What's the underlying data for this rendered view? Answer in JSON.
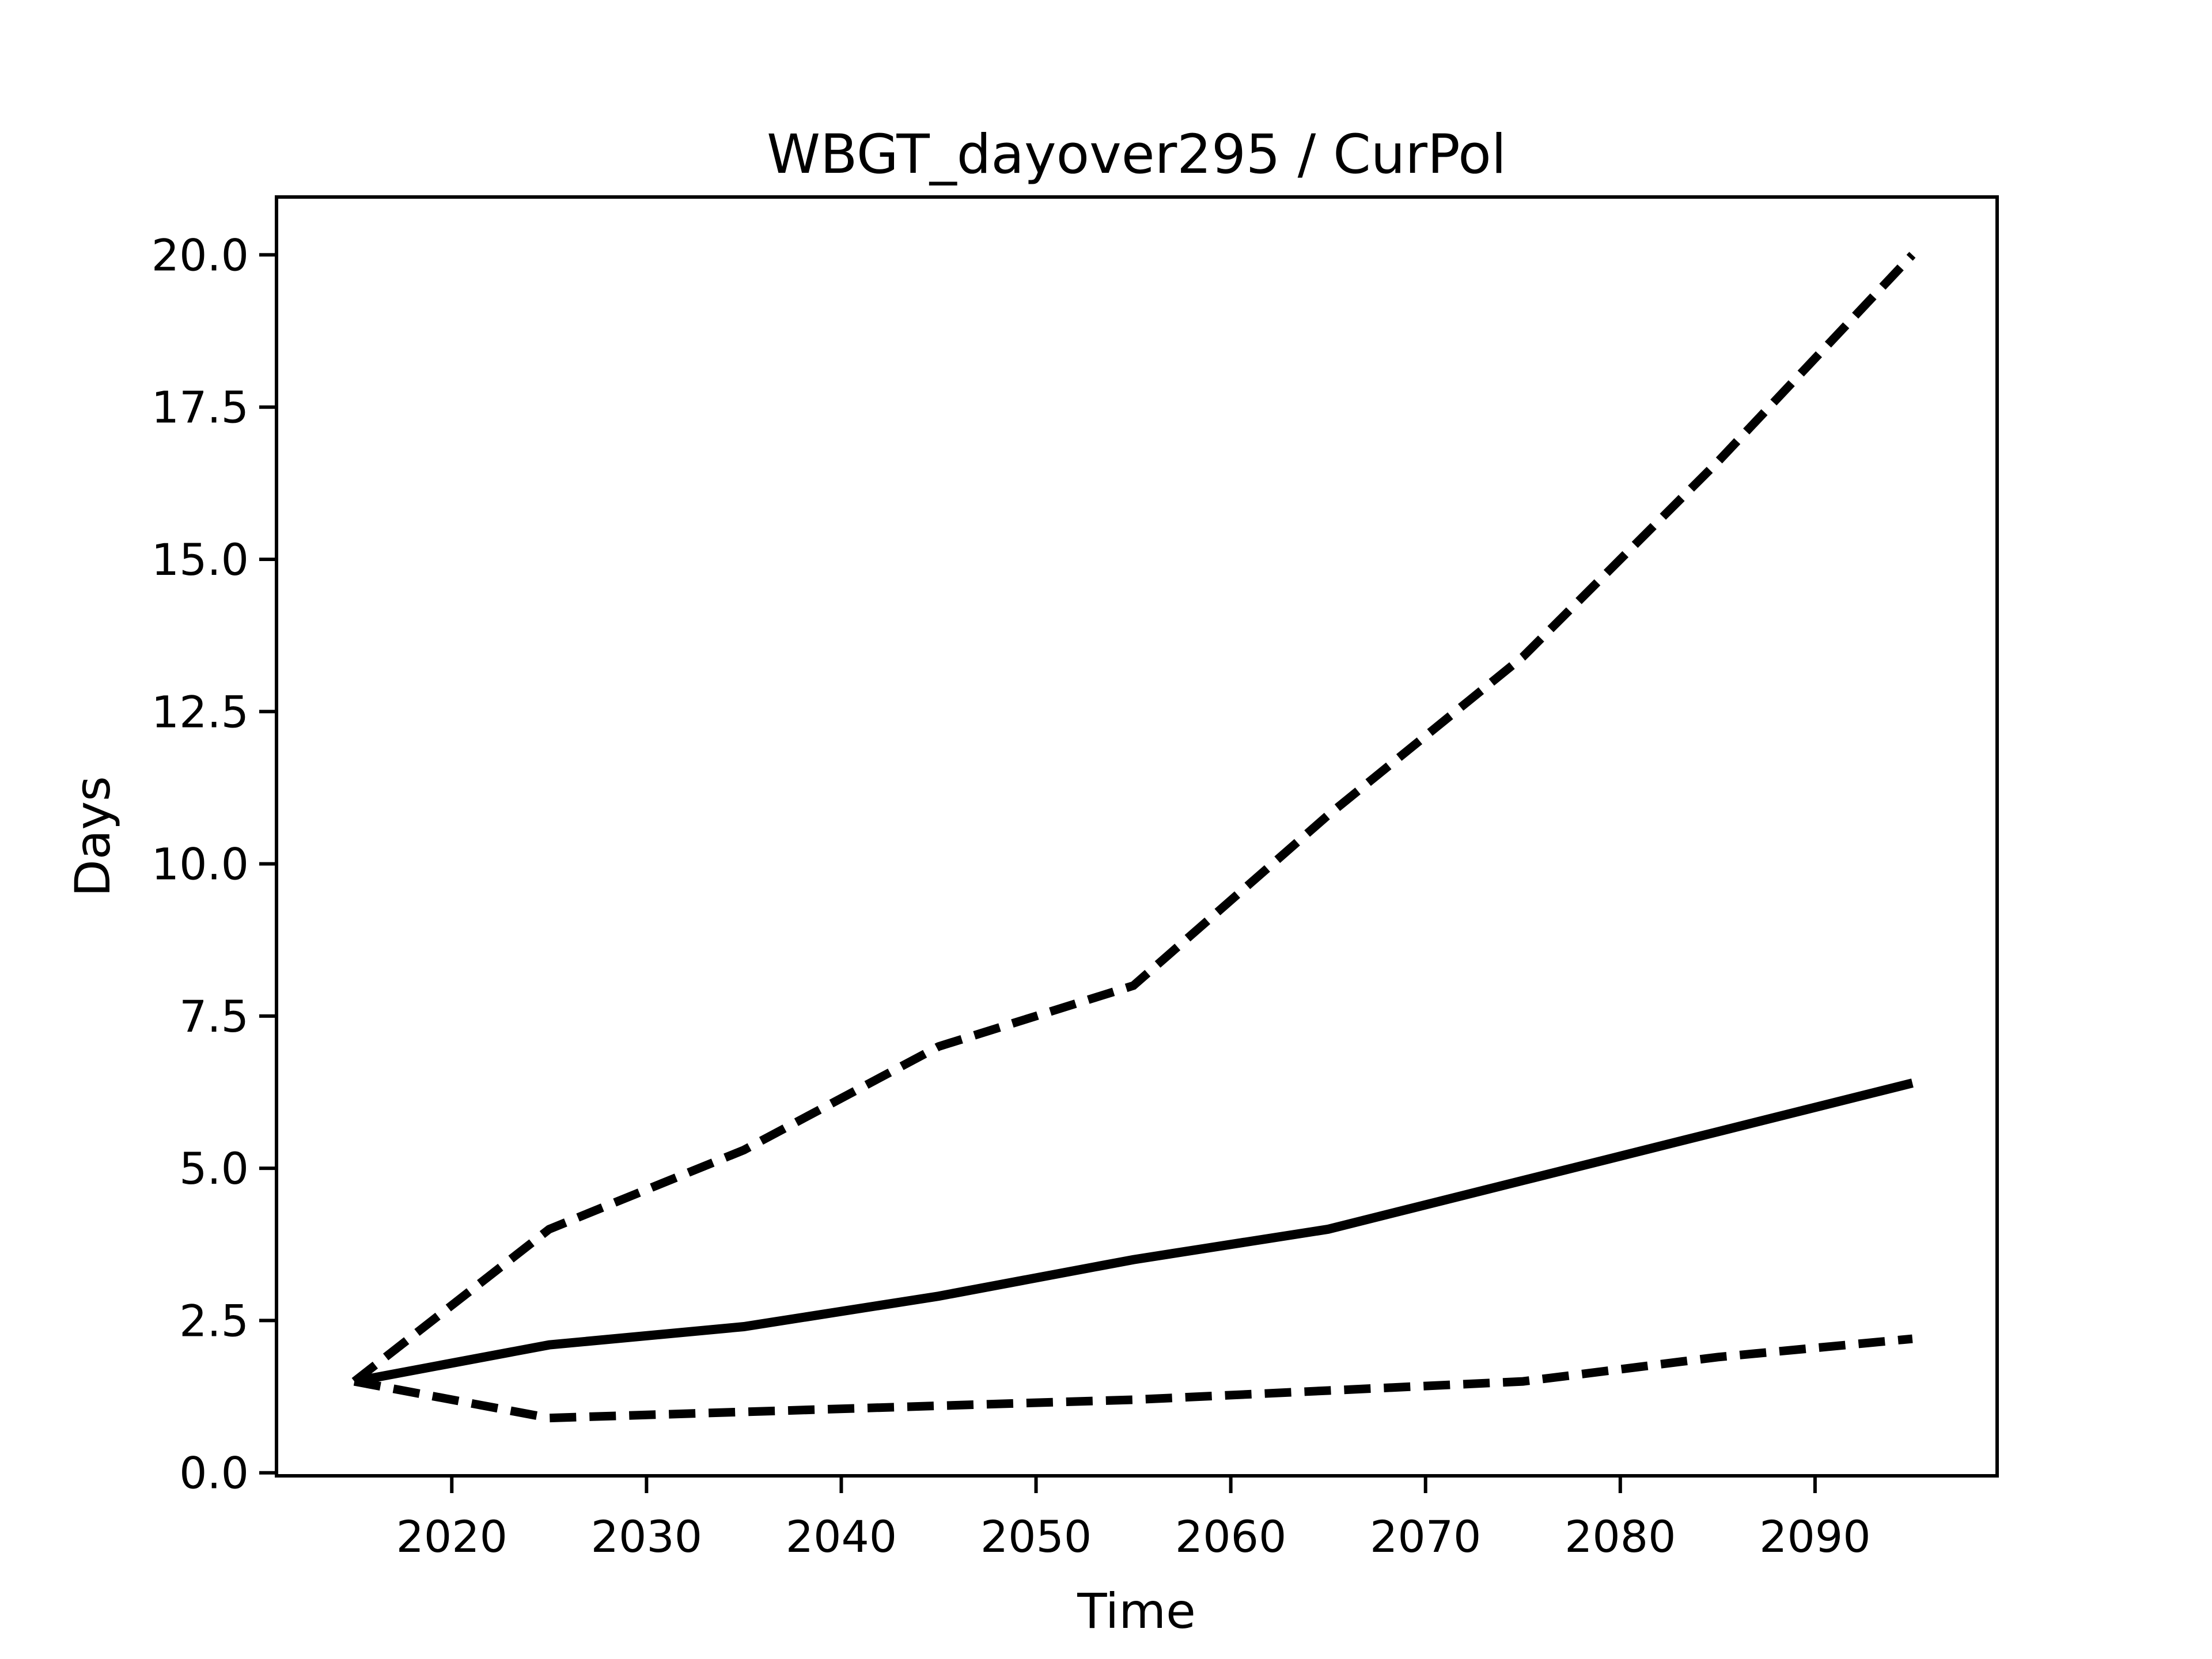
{
  "page": {
    "background_color": "#ffffff",
    "foreground_color": "#000000"
  },
  "chart_data": {
    "type": "line",
    "title": "WBGT_dayover295 / CurPol",
    "xlabel": "Time",
    "ylabel": "Days",
    "x": [
      2015,
      2025,
      2035,
      2045,
      2055,
      2065,
      2075,
      2085,
      2095
    ],
    "series": [
      {
        "name": "upper-dashed-percentile",
        "style": "dashed",
        "color": "#000000",
        "values": [
          1.5,
          4.0,
          5.3,
          7.0,
          8.0,
          10.8,
          13.4,
          16.6,
          20.0
        ]
      },
      {
        "name": "median-solid",
        "style": "solid",
        "color": "#000000",
        "values": [
          1.5,
          2.1,
          2.4,
          2.9,
          3.5,
          4.0,
          4.8,
          5.6,
          6.4
        ]
      },
      {
        "name": "lower-dashed-percentile",
        "style": "dashed",
        "color": "#000000",
        "values": [
          1.5,
          0.9,
          1.0,
          1.1,
          1.2,
          1.35,
          1.5,
          1.9,
          2.2
        ]
      }
    ],
    "xlim": [
      2011,
      2099.35
    ],
    "ylim": [
      -0.05,
      20.95
    ],
    "xticks": {
      "values": [
        2020,
        2030,
        2040,
        2050,
        2060,
        2070,
        2080,
        2090
      ],
      "labels": [
        "2020",
        "2030",
        "2040",
        "2050",
        "2060",
        "2070",
        "2080",
        "2090"
      ]
    },
    "yticks": {
      "values": [
        0.0,
        2.5,
        5.0,
        7.5,
        10.0,
        12.5,
        15.0,
        17.5,
        20.0
      ],
      "labels": [
        "0.0",
        "2.5",
        "5.0",
        "7.5",
        "10.0",
        "12.5",
        "15.0",
        "17.5",
        "20.0"
      ]
    },
    "grid": false,
    "legend": "none"
  }
}
